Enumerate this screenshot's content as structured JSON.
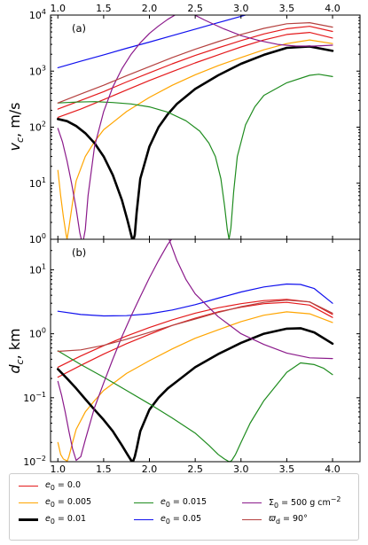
{
  "chart_data": [
    {
      "type": "line",
      "panel_label": "(a)",
      "ylabel": "v_c, m/s",
      "yscale": "log",
      "ylim": [
        1,
        10000
      ],
      "xlim": [
        0.92,
        4.3
      ],
      "grid": false,
      "x_ticks": [
        "1.0",
        "1.5",
        "2.0",
        "2.5",
        "3.0",
        "3.5",
        "4.0"
      ],
      "x_ticks_top": [
        "1.0",
        "1.5",
        "2.0",
        "2.5",
        "3.0",
        "3.5",
        "4.0"
      ],
      "y_ticks": [
        "10^0",
        "10^1",
        "10^2",
        "10^3",
        "10^4"
      ],
      "series": [
        {
          "name": "e0 = 0.0",
          "color": "#e41a1c",
          "width": 1.2,
          "x": [
            1.0,
            1.25,
            1.5,
            1.75,
            2.0,
            2.25,
            2.5,
            2.75,
            3.0,
            3.25,
            3.5,
            3.75,
            4.0
          ],
          "y": [
            210,
            300,
            430,
            640,
            930,
            1350,
            1900,
            2600,
            3500,
            4600,
            5700,
            6300,
            5100
          ]
        },
        {
          "name": "e0 = 0.0",
          "color": "#e41a1c",
          "width": 1.2,
          "x": [
            1.0,
            1.25,
            1.5,
            1.75,
            2.0,
            2.25,
            2.5,
            2.75,
            3.0,
            3.25,
            3.5,
            3.75,
            4.0
          ],
          "y": [
            150,
            210,
            310,
            460,
            680,
            980,
            1400,
            1950,
            2700,
            3600,
            4500,
            4900,
            3900
          ]
        },
        {
          "name": "e0 = 0.005",
          "color": "#ffa500",
          "width": 1.2,
          "x": [
            1.0,
            1.03,
            1.06,
            1.09,
            1.1,
            1.12,
            1.16,
            1.2,
            1.3,
            1.4,
            1.5,
            1.75,
            2.0,
            2.25,
            2.5,
            2.75,
            3.0,
            3.25,
            3.5,
            3.75,
            4.0
          ],
          "y": [
            17,
            6,
            2.5,
            1.2,
            1,
            1.6,
            4.5,
            11,
            30,
            55,
            90,
            190,
            340,
            560,
            860,
            1250,
            1750,
            2400,
            3100,
            3600,
            3100
          ]
        },
        {
          "name": "e0 = 0.01",
          "color": "#000000",
          "width": 2.6,
          "x": [
            1.0,
            1.1,
            1.2,
            1.3,
            1.4,
            1.5,
            1.6,
            1.7,
            1.76,
            1.8,
            1.82,
            1.84,
            1.86,
            1.9,
            2.0,
            2.1,
            2.2,
            2.3,
            2.5,
            2.75,
            3.0,
            3.25,
            3.5,
            3.75,
            4.0
          ],
          "y": [
            140,
            128,
            105,
            78,
            52,
            30,
            14,
            5,
            2.2,
            1.2,
            0.9,
            1.2,
            3,
            12,
            45,
            100,
            170,
            260,
            480,
            840,
            1350,
            1950,
            2600,
            2750,
            2300
          ]
        },
        {
          "name": "e0 = 0.015",
          "color": "#1f8c1f",
          "width": 1.2,
          "x": [
            1.0,
            1.2,
            1.4,
            1.6,
            1.8,
            2.0,
            2.2,
            2.4,
            2.55,
            2.65,
            2.72,
            2.78,
            2.82,
            2.85,
            2.87,
            2.89,
            2.92,
            2.96,
            3.05,
            3.15,
            3.25,
            3.5,
            3.75,
            3.85,
            4.0
          ],
          "y": [
            270,
            280,
            285,
            275,
            260,
            230,
            185,
            130,
            85,
            52,
            30,
            12,
            4,
            1.5,
            1,
            1.6,
            7,
            30,
            110,
            230,
            370,
            620,
            840,
            880,
            800
          ]
        },
        {
          "name": "e0 = 0.05",
          "color": "#1010ee",
          "width": 1.2,
          "x": [
            1.0,
            1.25,
            1.5,
            1.75,
            2.0,
            2.25,
            2.5,
            2.75,
            3.0,
            3.25
          ],
          "y": [
            1150,
            1500,
            1950,
            2550,
            3300,
            4300,
            5600,
            7300,
            9500,
            12400
          ]
        },
        {
          "name": "Sigma0 = 500 g cm^-2",
          "color": "#8b1a8b",
          "width": 1.2,
          "x": [
            1.0,
            1.05,
            1.1,
            1.15,
            1.2,
            1.24,
            1.27,
            1.3,
            1.33,
            1.4,
            1.5,
            1.6,
            1.7,
            1.8,
            1.9,
            2.0,
            2.1,
            2.2,
            2.3
          ],
          "y": [
            95,
            55,
            25,
            10,
            3.5,
            1.3,
            0.8,
            1.5,
            6,
            45,
            190,
            520,
            1100,
            2000,
            3200,
            4700,
            6400,
            8400,
            10500
          ]
        },
        {
          "name": "Sigma0 = 500 g cm^-2",
          "color": "#8b1a8b",
          "width": 1.2,
          "x": [
            2.4,
            2.6,
            2.8,
            3.0,
            3.2,
            3.4,
            3.6,
            3.8,
            4.0
          ],
          "y": [
            12000,
            8200,
            5800,
            4300,
            3500,
            3000,
            2800,
            2800,
            2900
          ]
        },
        {
          "name": "varpi_d = 90 deg",
          "color": "#b5413f",
          "width": 1.2,
          "x": [
            1.0,
            1.25,
            1.5,
            1.75,
            2.0,
            2.25,
            2.5,
            2.75,
            3.0,
            3.25,
            3.5,
            3.75,
            4.0
          ],
          "y": [
            270,
            390,
            560,
            830,
            1200,
            1750,
            2450,
            3350,
            4500,
            5800,
            7000,
            7300,
            6100
          ]
        }
      ]
    },
    {
      "type": "line",
      "panel_label": "(b)",
      "ylabel": "d_c, km",
      "xlabel": "semi-major axis, AU",
      "yscale": "log",
      "ylim": [
        0.01,
        30
      ],
      "xlim": [
        0.92,
        4.3
      ],
      "grid": false,
      "x_ticks": [
        "1.0",
        "1.5",
        "2.0",
        "2.5",
        "3.0",
        "3.5",
        "4.0"
      ],
      "y_ticks": [
        "10^-2",
        "10^-1",
        "10^0",
        "10^1"
      ],
      "series": [
        {
          "name": "e0 = 0.0",
          "color": "#e41a1c",
          "width": 1.2,
          "x": [
            1.0,
            1.25,
            1.5,
            1.75,
            2.0,
            2.25,
            2.5,
            2.75,
            3.0,
            3.25,
            3.5,
            3.75,
            4.0
          ],
          "y": [
            0.21,
            0.32,
            0.48,
            0.7,
            0.98,
            1.35,
            1.75,
            2.2,
            2.6,
            2.95,
            3.1,
            2.8,
            1.8
          ]
        },
        {
          "name": "e0 = 0.0",
          "color": "#e41a1c",
          "width": 1.2,
          "x": [
            1.0,
            1.25,
            1.5,
            1.75,
            2.0,
            2.25,
            2.5,
            2.75,
            3.0,
            3.25,
            3.5,
            3.75,
            4.0
          ],
          "y": [
            0.3,
            0.45,
            0.65,
            0.92,
            1.25,
            1.65,
            2.1,
            2.55,
            2.95,
            3.3,
            3.45,
            3.15,
            2.0
          ]
        },
        {
          "name": "e0 = 0.005",
          "color": "#ffa500",
          "width": 1.2,
          "x": [
            1.0,
            1.03,
            1.06,
            1.09,
            1.1,
            1.12,
            1.16,
            1.2,
            1.3,
            1.4,
            1.5,
            1.75,
            2.0,
            2.25,
            2.5,
            2.75,
            3.0,
            3.25,
            3.5,
            3.75,
            4.0
          ],
          "y": [
            0.02,
            0.013,
            0.011,
            0.0105,
            0.01,
            0.012,
            0.02,
            0.032,
            0.06,
            0.09,
            0.13,
            0.24,
            0.38,
            0.58,
            0.85,
            1.15,
            1.55,
            1.95,
            2.2,
            2.05,
            1.5
          ]
        },
        {
          "name": "e0 = 0.01",
          "color": "#000000",
          "width": 2.6,
          "x": [
            1.0,
            1.1,
            1.2,
            1.3,
            1.4,
            1.5,
            1.6,
            1.7,
            1.76,
            1.8,
            1.82,
            1.84,
            1.86,
            1.9,
            2.0,
            2.1,
            2.2,
            2.3,
            2.5,
            2.75,
            3.0,
            3.25,
            3.5,
            3.65,
            3.8,
            4.0
          ],
          "y": [
            0.28,
            0.2,
            0.14,
            0.095,
            0.065,
            0.045,
            0.03,
            0.018,
            0.013,
            0.0105,
            0.01,
            0.012,
            0.016,
            0.03,
            0.065,
            0.1,
            0.14,
            0.18,
            0.3,
            0.48,
            0.72,
            1.0,
            1.2,
            1.22,
            1.05,
            0.7
          ]
        },
        {
          "name": "e0 = 0.015",
          "color": "#1f8c1f",
          "width": 1.2,
          "x": [
            1.0,
            1.25,
            1.5,
            1.75,
            2.0,
            2.25,
            2.5,
            2.65,
            2.75,
            2.82,
            2.86,
            2.88,
            2.9,
            2.94,
            3.0,
            3.1,
            3.25,
            3.5,
            3.65,
            3.8,
            3.9,
            4.0
          ],
          "y": [
            0.54,
            0.33,
            0.21,
            0.13,
            0.08,
            0.048,
            0.028,
            0.018,
            0.013,
            0.011,
            0.0102,
            0.01,
            0.0105,
            0.013,
            0.02,
            0.04,
            0.09,
            0.25,
            0.35,
            0.33,
            0.29,
            0.23
          ]
        },
        {
          "name": "e0 = 0.05",
          "color": "#1010ee",
          "width": 1.2,
          "x": [
            1.0,
            1.25,
            1.5,
            1.75,
            2.0,
            2.25,
            2.5,
            2.75,
            3.0,
            3.25,
            3.5,
            3.65,
            3.8,
            4.0
          ],
          "y": [
            2.25,
            2.0,
            1.9,
            1.92,
            2.05,
            2.35,
            2.85,
            3.6,
            4.5,
            5.4,
            6.0,
            5.9,
            5.1,
            3.0
          ]
        },
        {
          "name": "Sigma0 = 500 g cm^-2",
          "color": "#8b1a8b",
          "width": 1.2,
          "x": [
            1.0,
            1.04,
            1.08,
            1.12,
            1.16,
            1.2,
            1.25,
            1.3,
            1.4,
            1.5,
            1.6,
            1.7,
            1.8,
            1.9,
            2.0,
            2.1,
            2.2,
            2.27
          ],
          "y": [
            0.18,
            0.11,
            0.06,
            0.03,
            0.016,
            0.0105,
            0.012,
            0.022,
            0.07,
            0.17,
            0.4,
            0.9,
            1.9,
            3.8,
            7.5,
            14,
            25,
            34
          ]
        },
        {
          "name": "Sigma0 = 500 g cm^-2",
          "color": "#8b1a8b",
          "width": 1.2,
          "x": [
            2.2,
            2.3,
            2.4,
            2.5,
            2.75,
            3.0,
            3.25,
            3.5,
            3.75,
            4.0
          ],
          "y": [
            34,
            14,
            7,
            4.2,
            1.85,
            1.0,
            0.68,
            0.5,
            0.42,
            0.41
          ]
        },
        {
          "name": "varpi_d = 90 deg",
          "color": "#b5413f",
          "width": 1.2,
          "x": [
            1.0,
            1.25,
            1.5,
            1.75,
            2.0,
            2.25,
            2.5,
            2.75,
            3.0,
            3.25,
            3.5,
            3.75,
            4.0
          ],
          "y": [
            0.53,
            0.56,
            0.66,
            0.82,
            1.05,
            1.35,
            1.7,
            2.15,
            2.65,
            3.1,
            3.35,
            3.15,
            2.1
          ]
        }
      ]
    }
  ],
  "legend": {
    "items": [
      {
        "label": "e0 = 0.0",
        "color": "#e41a1c",
        "width": 1.5
      },
      {
        "label": "e0 = 0.005",
        "color": "#ffa500",
        "width": 1.5
      },
      {
        "label": "e0 = 0.01",
        "color": "#000000",
        "width": 3
      },
      {
        "label": "e0 = 0.015",
        "color": "#1f8c1f",
        "width": 1.5
      },
      {
        "label": "e0 = 0.05",
        "color": "#1010ee",
        "width": 1.5
      },
      {
        "label": "Σ0 = 500 g cm^-2",
        "color": "#8b1a8b",
        "width": 1.5
      },
      {
        "label": "ϖd = 90°",
        "color": "#b5413f",
        "width": 1.5
      }
    ]
  }
}
